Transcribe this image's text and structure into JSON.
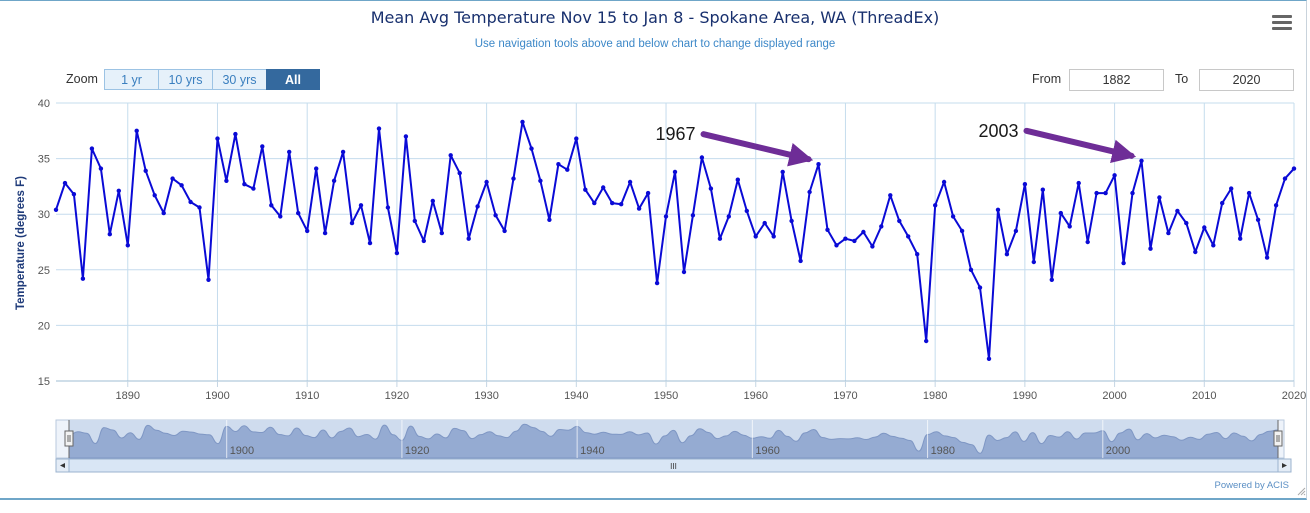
{
  "header": {
    "title": "Mean Avg Temperature Nov 15 to Jan 8 - Spokane Area, WA (ThreadEx)",
    "subtitle": "Use navigation tools above and below chart to change displayed range",
    "menu_icon": "hamburger-menu-icon"
  },
  "zoom": {
    "label": "Zoom",
    "buttons": [
      "1 yr",
      "10 yrs",
      "30 yrs",
      "All"
    ],
    "active": "All"
  },
  "range": {
    "from_label": "From",
    "from_value": "1882",
    "to_label": "To",
    "to_value": "2020"
  },
  "annotations": [
    {
      "label": "1967",
      "year": 1967
    },
    {
      "label": "2003",
      "year": 2003
    }
  ],
  "navigator": {
    "labels": [
      "1900",
      "1920",
      "1940",
      "1960",
      "1980",
      "2000"
    ],
    "scroll_grip": "III"
  },
  "footer": {
    "credit": "Powered by ACIS"
  },
  "colors": {
    "line": "#0a0ad6",
    "arrow": "#6e2d97",
    "grid": "#c5dced",
    "navigator_fill": "#95abd2"
  },
  "chart_data": {
    "type": "line",
    "title": "Mean Avg Temperature Nov 15 to Jan 8 - Spokane Area, WA (ThreadEx)",
    "xlabel": "",
    "ylabel": "Temperature (degrees F)",
    "xlim": [
      1882,
      2020
    ],
    "ylim": [
      15,
      40
    ],
    "x_ticks": [
      1890,
      1900,
      1910,
      1920,
      1930,
      1940,
      1950,
      1960,
      1970,
      1980,
      1990,
      2000,
      2010,
      2020
    ],
    "y_ticks": [
      15,
      20,
      25,
      30,
      35,
      40
    ],
    "x_tick_labels": [
      "1890",
      "1900",
      "1910",
      "1920",
      "1930",
      "1940",
      "1950",
      "1960",
      "1970",
      "1980",
      "1990",
      "2000",
      "2010",
      "2020"
    ],
    "y_tick_labels": [
      "15",
      "20",
      "25",
      "30",
      "35",
      "40"
    ],
    "grid": true,
    "series": [
      {
        "name": "Mean Avg Temperature",
        "x": [
          1882,
          1883,
          1884,
          1885,
          1886,
          1887,
          1888,
          1889,
          1890,
          1891,
          1892,
          1893,
          1894,
          1895,
          1896,
          1897,
          1898,
          1899,
          1900,
          1901,
          1902,
          1903,
          1904,
          1905,
          1906,
          1907,
          1908,
          1909,
          1910,
          1911,
          1912,
          1913,
          1914,
          1915,
          1916,
          1917,
          1918,
          1919,
          1920,
          1921,
          1922,
          1923,
          1924,
          1925,
          1926,
          1927,
          1928,
          1929,
          1930,
          1931,
          1932,
          1933,
          1934,
          1935,
          1936,
          1937,
          1938,
          1939,
          1940,
          1941,
          1942,
          1943,
          1944,
          1945,
          1946,
          1947,
          1948,
          1949,
          1950,
          1951,
          1952,
          1953,
          1954,
          1955,
          1956,
          1957,
          1958,
          1959,
          1960,
          1961,
          1962,
          1963,
          1964,
          1965,
          1966,
          1967,
          1968,
          1969,
          1970,
          1971,
          1972,
          1973,
          1974,
          1975,
          1976,
          1977,
          1978,
          1979,
          1980,
          1981,
          1982,
          1983,
          1984,
          1985,
          1986,
          1987,
          1988,
          1989,
          1990,
          1991,
          1992,
          1993,
          1994,
          1995,
          1996,
          1997,
          1998,
          1999,
          2000,
          2001,
          2002,
          2003,
          2004,
          2005,
          2006,
          2007,
          2008,
          2009,
          2010,
          2011,
          2012,
          2013,
          2014,
          2015,
          2016,
          2017,
          2018,
          2019,
          2020
        ],
        "values": [
          30.4,
          32.8,
          31.8,
          24.2,
          35.9,
          34.1,
          28.2,
          32.1,
          27.2,
          37.5,
          33.9,
          31.7,
          30.1,
          33.2,
          32.6,
          31.1,
          30.6,
          24.1,
          36.8,
          33.0,
          37.2,
          32.7,
          32.3,
          36.1,
          30.8,
          29.8,
          35.6,
          30.1,
          28.5,
          34.1,
          28.3,
          33.0,
          35.6,
          29.2,
          30.8,
          27.4,
          37.7,
          30.6,
          26.5,
          37.0,
          29.4,
          27.6,
          31.2,
          28.3,
          35.3,
          33.7,
          27.8,
          30.7,
          32.9,
          29.9,
          28.5,
          33.2,
          38.3,
          35.9,
          33.0,
          29.5,
          34.5,
          34.0,
          36.8,
          32.2,
          31.0,
          32.4,
          31.0,
          30.9,
          32.9,
          30.5,
          31.9,
          23.8,
          29.8,
          33.8,
          24.8,
          29.9,
          35.1,
          32.3,
          27.8,
          29.8,
          33.1,
          30.3,
          28.0,
          29.2,
          28.0,
          33.8,
          29.4,
          25.8,
          32.0,
          34.5,
          28.6,
          27.2,
          27.8,
          27.6,
          28.4,
          27.1,
          28.9,
          31.7,
          29.4,
          28.0,
          26.4,
          18.6,
          30.8,
          32.9,
          29.8,
          28.5,
          25.0,
          23.4,
          17.0,
          30.4,
          26.4,
          28.5,
          32.7,
          25.7,
          32.2,
          24.1,
          30.1,
          28.9,
          32.8,
          27.5,
          31.9,
          31.9,
          33.5,
          25.6,
          31.9,
          34.8,
          26.9,
          31.5,
          28.3,
          30.3,
          29.2,
          26.6,
          28.8,
          27.2,
          31.0,
          32.3,
          27.8,
          31.9,
          29.5,
          26.1,
          30.8,
          33.2,
          34.1
        ]
      }
    ]
  }
}
